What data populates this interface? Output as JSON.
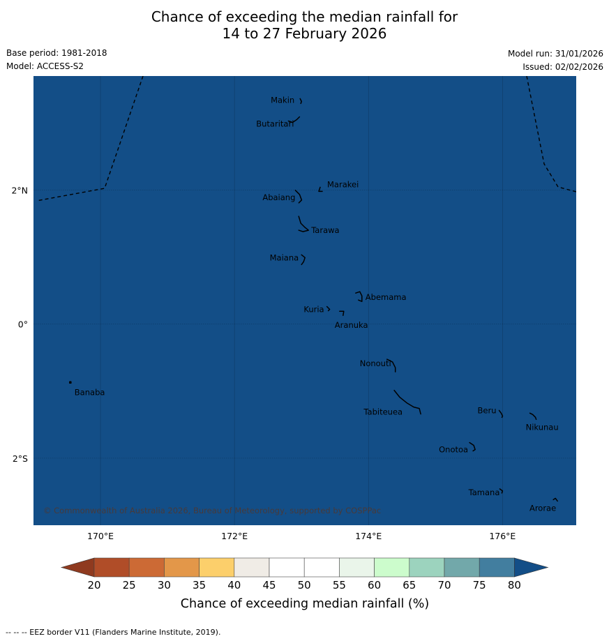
{
  "header": {
    "title_line1": "Chance of exceeding the median rainfall for",
    "title_line2": "14 to 27 February 2026",
    "base_period": "Base period: 1981-2018",
    "model": "Model: ACCESS-S2",
    "model_run": "Model run: 31/01/2026",
    "issued": "Issued: 02/02/2026"
  },
  "map": {
    "lon_range": [
      169.0,
      177.1
    ],
    "lat_range": [
      -3.0,
      3.7
    ],
    "lon_ticks": [
      {
        "value": 170,
        "label": "170°E"
      },
      {
        "value": 172,
        "label": "172°E"
      },
      {
        "value": 174,
        "label": "174°E"
      },
      {
        "value": 176,
        "label": "176°E"
      }
    ],
    "lat_ticks": [
      {
        "value": 2,
        "label": "2°N"
      },
      {
        "value": 0,
        "label": "0°"
      },
      {
        "value": -2,
        "label": "2°S"
      }
    ],
    "places": [
      {
        "name": "Makin",
        "lon": 173.0,
        "lat": 3.3
      },
      {
        "name": "Butaritari",
        "lon": 172.95,
        "lat": 3.05
      },
      {
        "name": "Marakei",
        "lon": 173.3,
        "lat": 2.0
      },
      {
        "name": "Abaiang",
        "lon": 172.95,
        "lat": 1.85
      },
      {
        "name": "Tarawa",
        "lon": 173.0,
        "lat": 1.4
      },
      {
        "name": "Maiana",
        "lon": 173.0,
        "lat": 0.95
      },
      {
        "name": "Abemama",
        "lon": 173.85,
        "lat": 0.4
      },
      {
        "name": "Kuria",
        "lon": 173.4,
        "lat": 0.22
      },
      {
        "name": "Aranuka",
        "lon": 173.6,
        "lat": 0.15
      },
      {
        "name": "Banaba",
        "lon": 169.55,
        "lat": -0.87
      },
      {
        "name": "Nonouti",
        "lon": 174.4,
        "lat": -0.65
      },
      {
        "name": "Beru",
        "lon": 175.97,
        "lat": -1.35
      },
      {
        "name": "Nikunau",
        "lon": 176.45,
        "lat": -1.37
      },
      {
        "name": "Tabiteuea",
        "lon": 174.8,
        "lat": -1.3
      },
      {
        "name": "Onotoa",
        "lon": 175.55,
        "lat": -1.85
      },
      {
        "name": "Tamana",
        "lon": 175.98,
        "lat": -2.5
      },
      {
        "name": "Arorae",
        "lon": 176.8,
        "lat": -2.64
      }
    ],
    "copyright": "© Commonwealth of Australia 2026, Bureau of Meteorology, supported by COSPPac"
  },
  "legend": {
    "levels": [
      20,
      25,
      30,
      35,
      40,
      45,
      50,
      55,
      60,
      65,
      70,
      75,
      80
    ],
    "colors": [
      "#8f3a1f",
      "#b04d28",
      "#cc6a35",
      "#e39749",
      "#fccf6b",
      "#f0ece6",
      "#ffffff",
      "#ffffff",
      "#eaf5ea",
      "#ccfccc",
      "#9cd3be",
      "#72a8aa",
      "#427e9f",
      "#134e87"
    ],
    "label": "Chance of exceeding median rainfall (%)"
  },
  "footnote": "--  --  -- EEZ border V11 (Flanders Marine Institute, 2019)."
}
